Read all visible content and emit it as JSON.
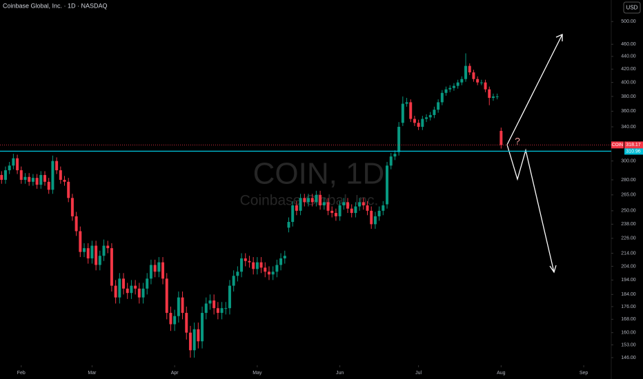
{
  "header": {
    "symbol_title": "Coinbase Global, Inc. · 1D · NASDAQ",
    "currency": "USD"
  },
  "chart_data": {
    "type": "candlestick",
    "watermark": "COIN, 1D",
    "watermark_subtitle": "Coinbase Global, Inc.",
    "up_color": "#089981",
    "down_color": "#f23645",
    "log_scale": true,
    "ylim": [
      142,
      541
    ],
    "yticks": [
      {
        "value": 146,
        "label": "146.00"
      },
      {
        "value": 153,
        "label": "153.00"
      },
      {
        "value": 160,
        "label": "160.00"
      },
      {
        "value": 168,
        "label": "168.00"
      },
      {
        "value": 176,
        "label": "176.00"
      },
      {
        "value": 184,
        "label": "184.00"
      },
      {
        "value": 194,
        "label": "194.00"
      },
      {
        "value": 204,
        "label": "204.00"
      },
      {
        "value": 214,
        "label": "214.00"
      },
      {
        "value": 226,
        "label": "226.00"
      },
      {
        "value": 238,
        "label": "238.00"
      },
      {
        "value": 250,
        "label": "250.00"
      },
      {
        "value": 265,
        "label": "265.00"
      },
      {
        "value": 280,
        "label": "280.00"
      },
      {
        "value": 300,
        "label": "300.00"
      },
      {
        "value": 340,
        "label": "340.00"
      },
      {
        "value": 360,
        "label": "360.00"
      },
      {
        "value": 380,
        "label": "380.00"
      },
      {
        "value": 400,
        "label": "400.00"
      },
      {
        "value": 420,
        "label": "420.00"
      },
      {
        "value": 440,
        "label": "440.00"
      },
      {
        "value": 460,
        "label": "460.00"
      },
      {
        "value": 500,
        "label": "500.00"
      }
    ],
    "xlim": [
      -0.4,
      155
    ],
    "xticks": [
      {
        "value": 5,
        "label": "Feb"
      },
      {
        "value": 23,
        "label": "Mar"
      },
      {
        "value": 44,
        "label": "Apr"
      },
      {
        "value": 65,
        "label": "May"
      },
      {
        "value": 86,
        "label": "Jun"
      },
      {
        "value": 106,
        "label": "Jul"
      },
      {
        "value": 127,
        "label": "Aug"
      },
      {
        "value": 148,
        "label": "Sep"
      }
    ],
    "open": [
      285,
      280,
      290,
      295,
      303,
      290,
      280,
      283,
      278,
      282,
      275,
      285,
      278,
      270,
      300,
      290,
      280,
      278,
      262,
      245,
      232,
      215,
      218,
      210,
      220,
      205,
      212,
      220,
      218,
      190,
      182,
      195,
      188,
      185,
      190,
      188,
      182,
      188,
      195,
      205,
      200,
      207,
      195,
      172,
      165,
      170,
      182,
      172,
      160,
      150,
      162,
      155,
      172,
      178,
      180,
      175,
      172,
      175,
      175,
      190,
      197,
      200,
      210,
      208,
      207,
      202,
      207,
      203,
      200,
      198,
      200,
      205,
      210,
      235,
      240,
      255,
      250,
      262,
      258,
      262,
      258,
      265,
      255,
      258,
      250,
      248,
      245,
      255,
      258,
      252,
      248,
      254,
      258,
      255,
      250,
      238,
      245,
      250,
      256,
      295,
      305,
      310,
      345,
      370,
      372,
      350,
      345,
      340,
      350,
      352,
      355,
      362,
      372,
      385,
      390,
      392,
      395,
      400,
      405,
      425,
      415,
      405,
      400,
      400,
      390,
      378,
      380,
      335
    ],
    "high": [
      289,
      294,
      299,
      308,
      307,
      294,
      287,
      287,
      286,
      286,
      289,
      289,
      282,
      306,
      304,
      294,
      284,
      282,
      266,
      249,
      236,
      222,
      222,
      224,
      224,
      216,
      225,
      224,
      222,
      194,
      199,
      199,
      192,
      194,
      194,
      192,
      192,
      199,
      209,
      209,
      211,
      211,
      199,
      176,
      174,
      186,
      186,
      176,
      164,
      166,
      166,
      176,
      182,
      184,
      184,
      179,
      179,
      179,
      194,
      201,
      204,
      214,
      214,
      212,
      211,
      211,
      211,
      207,
      204,
      204,
      209,
      214,
      216,
      244,
      259,
      259,
      266,
      266,
      266,
      266,
      269,
      269,
      262,
      262,
      254,
      252,
      259,
      262,
      262,
      256,
      258,
      262,
      262,
      259,
      254,
      249,
      254,
      259,
      299,
      309,
      312,
      346,
      380,
      378,
      376,
      354,
      349,
      354,
      356,
      359,
      366,
      376,
      389,
      394,
      396,
      399,
      404,
      409,
      445,
      429,
      419,
      409,
      404,
      404,
      394,
      384,
      384,
      339
    ],
    "low": [
      276,
      276,
      286,
      291,
      286,
      276,
      276,
      274,
      274,
      271,
      271,
      274,
      266,
      266,
      286,
      276,
      274,
      258,
      241,
      228,
      211,
      211,
      206,
      206,
      201,
      201,
      208,
      214,
      186,
      178,
      178,
      184,
      181,
      181,
      184,
      178,
      178,
      184,
      191,
      196,
      196,
      191,
      168,
      161,
      161,
      166,
      168,
      156,
      146,
      146,
      151,
      151,
      168,
      174,
      171,
      168,
      168,
      171,
      171,
      186,
      193,
      196,
      204,
      203,
      198,
      198,
      199,
      196,
      194,
      194,
      196,
      201,
      206,
      231,
      236,
      246,
      246,
      254,
      254,
      254,
      254,
      251,
      251,
      246,
      244,
      241,
      241,
      251,
      248,
      244,
      244,
      250,
      251,
      246,
      234,
      234,
      241,
      246,
      252,
      291,
      301,
      306,
      341,
      366,
      346,
      341,
      336,
      336,
      346,
      348,
      351,
      358,
      368,
      381,
      386,
      388,
      391,
      396,
      401,
      411,
      401,
      396,
      396,
      386,
      368,
      374,
      376,
      314
    ],
    "close": [
      280,
      290,
      295,
      303,
      290,
      280,
      283,
      278,
      282,
      275,
      285,
      278,
      270,
      300,
      290,
      280,
      278,
      262,
      245,
      232,
      215,
      218,
      210,
      220,
      205,
      212,
      220,
      218,
      190,
      182,
      195,
      188,
      185,
      190,
      188,
      182,
      188,
      195,
      205,
      200,
      207,
      195,
      172,
      165,
      170,
      182,
      172,
      160,
      150,
      162,
      155,
      172,
      178,
      180,
      175,
      172,
      175,
      175,
      190,
      197,
      200,
      210,
      208,
      207,
      202,
      207,
      203,
      200,
      198,
      200,
      205,
      210,
      212,
      240,
      255,
      250,
      262,
      258,
      262,
      258,
      265,
      255,
      258,
      250,
      248,
      245,
      255,
      258,
      252,
      248,
      254,
      258,
      255,
      250,
      238,
      245,
      250,
      255,
      295,
      305,
      308,
      340,
      370,
      372,
      350,
      345,
      340,
      350,
      352,
      355,
      362,
      372,
      385,
      390,
      392,
      395,
      400,
      405,
      425,
      415,
      405,
      400,
      400,
      390,
      378,
      380,
      380,
      318
    ],
    "last_price": {
      "symbol": "COIN",
      "value": 318.17
    },
    "horizontal_line": {
      "value": 310.96,
      "color": "#00bcd4"
    },
    "annotation": "?"
  }
}
